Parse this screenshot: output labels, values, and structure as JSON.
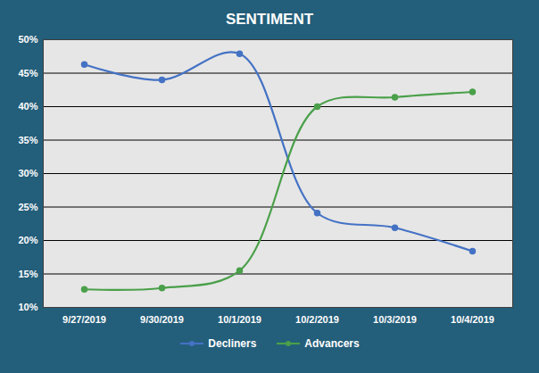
{
  "chart_data": {
    "type": "line",
    "title": "SENTIMENT",
    "categories": [
      "9/27/2019",
      "9/30/2019",
      "10/1/2019",
      "10/2/2019",
      "10/3/2019",
      "10/4/2019"
    ],
    "series": [
      {
        "name": "Decliners",
        "color": "#4472c4",
        "values": [
          46.3,
          44.0,
          47.9,
          24.1,
          21.9,
          18.4
        ]
      },
      {
        "name": "Advancers",
        "color": "#4aa04a",
        "values": [
          12.7,
          12.9,
          15.5,
          40.0,
          41.4,
          42.2
        ]
      }
    ],
    "ylim": [
      10,
      50
    ],
    "yticks": [
      {
        "value": 10,
        "label": "10%"
      },
      {
        "value": 15,
        "label": "15%"
      },
      {
        "value": 20,
        "label": "20%"
      },
      {
        "value": 25,
        "label": "25%"
      },
      {
        "value": 30,
        "label": "30%"
      },
      {
        "value": 35,
        "label": "35%"
      },
      {
        "value": 40,
        "label": "40%"
      },
      {
        "value": 45,
        "label": "45%"
      },
      {
        "value": 50,
        "label": "50%"
      }
    ],
    "grid": true,
    "legend": "bottom",
    "marker": "circle",
    "line_style": "smooth"
  }
}
